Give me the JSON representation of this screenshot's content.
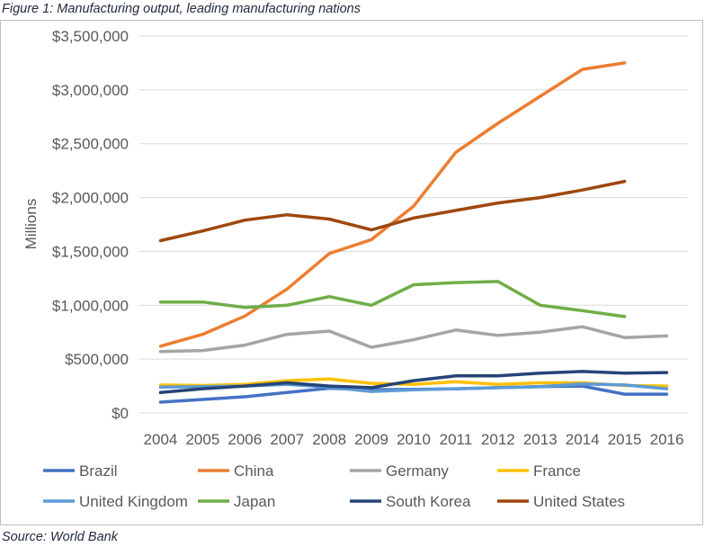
{
  "caption": "Figure 1: Manufacturing output, leading manufacturing nations",
  "source": "Source: World Bank",
  "chart_data": {
    "type": "line",
    "title": "",
    "xlabel": "",
    "ylabel": "Millions",
    "ylim": [
      0,
      3500000
    ],
    "yticks": [
      0,
      500000,
      1000000,
      1500000,
      2000000,
      2500000,
      3000000,
      3500000
    ],
    "ytick_labels": [
      "$0",
      "$500,000",
      "$1,000,000",
      "$1,500,000",
      "$2,000,000",
      "$2,500,000",
      "$3,000,000",
      "$3,500,000"
    ],
    "x": [
      "2004",
      "2005",
      "2006",
      "2007",
      "2008",
      "2009",
      "2010",
      "2011",
      "2012",
      "2013",
      "2014",
      "2015",
      "2016"
    ],
    "grid": true,
    "legend_position": "bottom",
    "series": [
      {
        "name": "Brazil",
        "color": "#4472c4",
        "values": [
          100000,
          125000,
          150000,
          190000,
          230000,
          215000,
          220000,
          225000,
          235000,
          245000,
          250000,
          175000,
          175000
        ]
      },
      {
        "name": "China",
        "color": "#ed7d31",
        "values": [
          620000,
          730000,
          900000,
          1150000,
          1480000,
          1610000,
          1920000,
          2420000,
          2690000,
          2940000,
          3190000,
          3250000,
          null
        ]
      },
      {
        "name": "Germany",
        "color": "#a5a5a5",
        "values": [
          570000,
          580000,
          630000,
          730000,
          760000,
          610000,
          680000,
          770000,
          720000,
          750000,
          800000,
          700000,
          715000
        ]
      },
      {
        "name": "France",
        "color": "#ffc000",
        "values": [
          260000,
          255000,
          265000,
          300000,
          315000,
          275000,
          265000,
          290000,
          265000,
          280000,
          280000,
          255000,
          250000
        ]
      },
      {
        "name": "United Kingdom",
        "color": "#5b9bd5",
        "values": [
          240000,
          245000,
          250000,
          265000,
          240000,
          200000,
          215000,
          225000,
          235000,
          245000,
          270000,
          260000,
          225000
        ]
      },
      {
        "name": "Japan",
        "color": "#70ad47",
        "values": [
          1030000,
          1030000,
          980000,
          1000000,
          1080000,
          1000000,
          1190000,
          1210000,
          1220000,
          1000000,
          950000,
          895000,
          null
        ]
      },
      {
        "name": "South Korea",
        "color": "#264478",
        "values": [
          190000,
          225000,
          250000,
          280000,
          250000,
          235000,
          300000,
          345000,
          345000,
          370000,
          385000,
          370000,
          375000
        ]
      },
      {
        "name": "United States",
        "color": "#9e480e",
        "values": [
          1600000,
          1690000,
          1790000,
          1840000,
          1800000,
          1700000,
          1810000,
          1880000,
          1950000,
          2000000,
          2070000,
          2150000,
          null
        ]
      }
    ]
  }
}
